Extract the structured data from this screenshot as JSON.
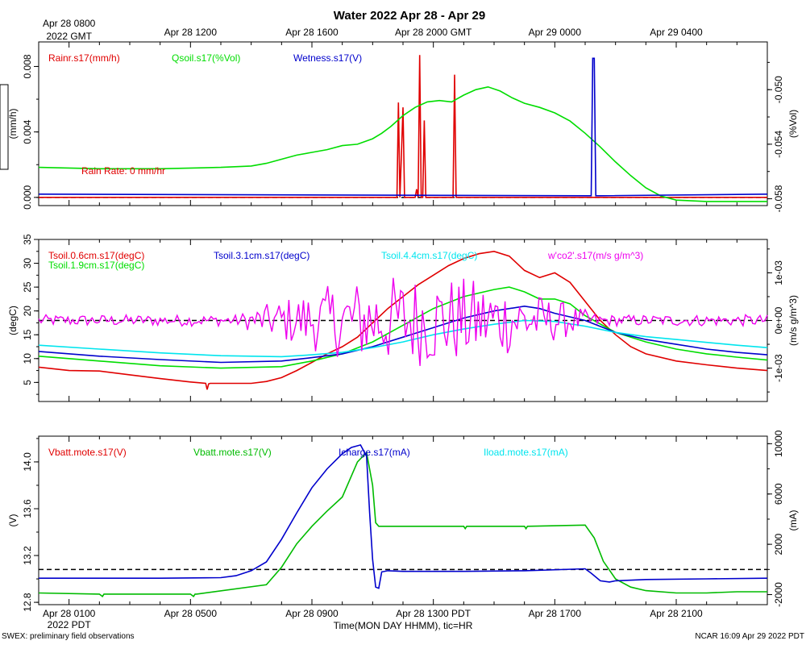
{
  "title": "Water 2022 Apr 28 - Apr 29",
  "footer_left": "SWEX: preliminary field observations",
  "footer_right": "NCAR 16:09 Apr 29 2022 PDT",
  "top_time_axis": {
    "ticks": [
      {
        "t": 1,
        "label": "Apr 28 0800",
        "label2": "2022 GMT"
      },
      {
        "t": 5,
        "label": "Apr 28 1200"
      },
      {
        "t": 9,
        "label": "Apr 28 1600"
      },
      {
        "t": 13,
        "label": "Apr 28 2000 GMT"
      },
      {
        "t": 17,
        "label": "Apr 29 0000"
      },
      {
        "t": 21,
        "label": "Apr 29 0400"
      }
    ]
  },
  "bottom_time_axis": {
    "ticks": [
      {
        "t": 1,
        "label": "Apr 28 0100",
        "label2": "2022 PDT"
      },
      {
        "t": 5,
        "label": "Apr 28 0500"
      },
      {
        "t": 9,
        "label": "Apr 28 0900"
      },
      {
        "t": 13,
        "label": "Apr 28 1300 PDT"
      },
      {
        "t": 17,
        "label": "Apr 28 1700"
      },
      {
        "t": 21,
        "label": "Apr 28 2100"
      }
    ],
    "xlabel": "Time(MON DAY HHMM), tic=HR"
  },
  "chart_data": [
    {
      "type": "line",
      "title": "Water 2022 Apr 28 - Apr 29",
      "xlim": [
        0,
        24
      ],
      "left_axis": {
        "label": "(mm/h)",
        "lim": [
          -0.0005,
          0.0095
        ],
        "ticks": [
          "0.000",
          "0.004",
          "0.008"
        ],
        "tick_values": [
          0,
          0.004,
          0.008
        ]
      },
      "right_axis": {
        "label": "(%Vol)",
        "lim": [
          -0.0585,
          -0.0465
        ],
        "ticks": [
          "-0.058",
          "-0.054",
          "-0.050"
        ],
        "tick_values": [
          -0.058,
          -0.054,
          -0.05
        ]
      },
      "annotation": {
        "text": "Rain Rate: 0 mm/hr",
        "color": "#e00000"
      },
      "series": [
        {
          "name": "Rainr.s17(mm/h)",
          "color": "#e00000",
          "axis": "left",
          "x": [
            0,
            11.8,
            11.85,
            11.9,
            11.95,
            12.0,
            12.05,
            12.1,
            12.15,
            12.4,
            12.45,
            12.5,
            12.55,
            12.6,
            12.65,
            12.7,
            12.75,
            12.8,
            12.85,
            12.9,
            12.95,
            13.0,
            13.05,
            13.6,
            13.65,
            13.7,
            13.75,
            13.8,
            24
          ],
          "y": [
            0,
            0,
            0.0058,
            0,
            0.0027,
            0.0055,
            0,
            0,
            0,
            0,
            0.0005,
            0,
            0.0087,
            0,
            0,
            0.0047,
            0,
            0,
            0,
            0,
            0,
            0,
            0,
            0,
            0,
            0.0075,
            0,
            0,
            0
          ]
        },
        {
          "name": "Qsoil.s17(%Vol)",
          "color": "#00dd00",
          "axis": "right",
          "x": [
            0,
            2,
            4,
            6,
            7,
            7.5,
            8,
            8.5,
            9,
            9.5,
            10,
            10.5,
            11,
            11.3,
            11.6,
            12,
            12.4,
            12.8,
            13.2,
            13.6,
            14,
            14.4,
            14.8,
            15.2,
            15.6,
            16,
            16.5,
            17,
            17.5,
            18,
            18.5,
            19,
            19.5,
            20,
            20.5,
            21,
            22,
            23,
            24
          ],
          "y": [
            -0.0557,
            -0.0558,
            -0.0558,
            -0.0557,
            -0.0556,
            -0.0554,
            -0.0551,
            -0.0548,
            -0.0546,
            -0.0544,
            -0.0541,
            -0.054,
            -0.0536,
            -0.0532,
            -0.0527,
            -0.0519,
            -0.0513,
            -0.0509,
            -0.0508,
            -0.0509,
            -0.0504,
            -0.05,
            -0.0498,
            -0.0501,
            -0.0506,
            -0.051,
            -0.0513,
            -0.0517,
            -0.0523,
            -0.0532,
            -0.0542,
            -0.0553,
            -0.0563,
            -0.0572,
            -0.0578,
            -0.0581,
            -0.0582,
            -0.0582,
            -0.0582
          ]
        },
        {
          "name": "Wetness.s17(V)",
          "color": "#0000cc",
          "axis": "left",
          "x": [
            0,
            18.1,
            18.2,
            18.25,
            18.3,
            18.35,
            18.5,
            24
          ],
          "y": [
            0.0002,
            0.0001,
            0.0001,
            0.0085,
            0.0085,
            0.0001,
            0.0001,
            0.0002
          ]
        }
      ],
      "reference_line": {
        "axis": "left",
        "value": 0,
        "style": "dashed"
      }
    },
    {
      "type": "line",
      "xlim": [
        0,
        24
      ],
      "left_axis": {
        "label": "(degC)",
        "lim": [
          1,
          35
        ],
        "ticks": [
          "5",
          "10",
          "15",
          "20",
          "25",
          "30",
          "35"
        ],
        "tick_values": [
          5,
          10,
          15,
          20,
          25,
          30,
          35
        ]
      },
      "right_axis": {
        "label": "(m/s g/m^3)",
        "lim": [
          -0.0017,
          0.0017
        ],
        "ticks": [
          "-1e-03",
          "0e+00",
          "1e-03"
        ],
        "tick_values": [
          -0.001,
          0,
          0.001
        ]
      },
      "series": [
        {
          "name": "Tsoil.0.6cm.s17(degC)",
          "color": "#e00000",
          "axis": "left",
          "x": [
            0,
            1,
            2,
            3,
            4,
            5,
            5.5,
            5.55,
            5.6,
            5.65,
            6,
            7,
            7.5,
            8,
            8.5,
            9,
            9.5,
            10,
            10.5,
            11,
            11.5,
            12,
            12.5,
            13,
            13.5,
            14,
            14.5,
            15,
            15.5,
            16,
            16.5,
            17,
            17.5,
            18,
            18.5,
            19,
            19.5,
            20,
            21,
            22,
            23,
            24
          ],
          "y": [
            8.2,
            7.5,
            7.4,
            6.6,
            5.8,
            5.1,
            4.8,
            3.5,
            4.7,
            4.8,
            4.8,
            4.8,
            5.2,
            6.0,
            7.5,
            9.2,
            11.0,
            12.5,
            14.5,
            17.5,
            20.5,
            23.0,
            25.5,
            27.5,
            29.5,
            31.0,
            32.0,
            32.5,
            31.5,
            28.5,
            27.0,
            28.0,
            26.0,
            22.0,
            18.0,
            15.0,
            12.5,
            11.0,
            9.5,
            8.7,
            8.0,
            7.5
          ]
        },
        {
          "name": "Tsoil.1.9cm.s17(degC)",
          "color": "#00dd00",
          "axis": "left",
          "x": [
            0,
            2,
            4,
            6,
            8,
            9,
            10,
            11,
            12,
            13,
            14,
            15,
            15.5,
            16,
            16.5,
            17,
            17.5,
            18,
            19,
            20,
            21,
            22,
            23,
            24
          ],
          "y": [
            10.5,
            9.5,
            8.5,
            8.0,
            8.3,
            9.5,
            11.0,
            13.5,
            17.0,
            20.5,
            23.0,
            24.5,
            25.0,
            24.0,
            22.5,
            22.5,
            21.5,
            19.0,
            15.5,
            13.5,
            12.0,
            11.0,
            10.3,
            9.7
          ]
        },
        {
          "name": "Tsoil.3.1cm.s17(degC)",
          "color": "#0000cc",
          "axis": "left",
          "x": [
            0,
            2,
            4,
            6,
            8,
            9,
            10,
            11,
            12,
            13,
            14,
            15,
            16,
            16.5,
            17,
            18,
            19,
            20,
            21,
            22,
            23,
            24
          ],
          "y": [
            11.5,
            10.5,
            9.8,
            9.2,
            9.5,
            10.2,
            11.0,
            12.5,
            14.5,
            16.5,
            18.5,
            20.0,
            21.0,
            20.5,
            19.5,
            18.0,
            15.5,
            14.0,
            13.0,
            12.0,
            11.3,
            10.8
          ]
        },
        {
          "name": "Tsoil.4.4cm.s17(degC)",
          "color": "#00e5ee",
          "axis": "left",
          "x": [
            0,
            2,
            4,
            6,
            8,
            9,
            10,
            11,
            12,
            13,
            14,
            15,
            16,
            17,
            18,
            19,
            20,
            21,
            22,
            23,
            24
          ],
          "y": [
            12.8,
            12.0,
            11.2,
            10.6,
            10.4,
            10.8,
            11.3,
            12.3,
            13.5,
            15.0,
            16.2,
            17.2,
            18.0,
            17.8,
            16.8,
            15.5,
            14.6,
            14.0,
            13.4,
            12.8,
            12.3
          ]
        },
        {
          "name": "w'co2'.s17(m/s g/m^3)",
          "color": "#ee00ee",
          "axis": "right",
          "noise": true,
          "note": "fluctuates around 0e+00; amplitude grows from ~1e-04 at night to ~1e-03 near midday"
        }
      ],
      "reference_line": {
        "axis": "right",
        "value": 0,
        "style": "dashed"
      }
    },
    {
      "type": "line",
      "xlim": [
        0,
        24
      ],
      "left_axis": {
        "label": "(V)",
        "lim": [
          12.78,
          14.22
        ],
        "ticks": [
          "12.8",
          "13.2",
          "13.6",
          "14.0"
        ],
        "tick_values": [
          12.8,
          13.2,
          13.6,
          14.0
        ]
      },
      "right_axis": {
        "label": "(mA)",
        "lim": [
          -2800,
          10600
        ],
        "ticks": [
          "-2000",
          "2000",
          "6000",
          "10000"
        ],
        "tick_values": [
          -2000,
          2000,
          6000,
          10000
        ]
      },
      "series": [
        {
          "name": "Vbatt.mote.s17(V)",
          "color": "#e00000",
          "axis": "left",
          "note": "hidden behind Vbatt.mote green trace"
        },
        {
          "name": "Vbatt.mote.s17(V)",
          "color": "#00bb00",
          "axis": "left",
          "x": [
            0,
            2,
            2.1,
            2.15,
            2.2,
            5,
            5.1,
            5.15,
            5.2,
            7.5,
            8,
            8.5,
            9,
            9.5,
            10,
            10.5,
            10.8,
            11,
            11.1,
            11.2,
            11.3,
            14,
            14.05,
            14.1,
            16,
            16.05,
            16.1,
            18,
            18.3,
            18.6,
            19,
            19.5,
            20,
            21,
            22,
            23,
            24
          ],
          "y": [
            12.88,
            12.87,
            12.85,
            12.87,
            12.87,
            12.87,
            12.85,
            12.87,
            12.87,
            12.95,
            13.1,
            13.3,
            13.45,
            13.58,
            13.7,
            14.0,
            14.08,
            13.8,
            13.48,
            13.45,
            13.45,
            13.45,
            13.43,
            13.45,
            13.45,
            13.43,
            13.45,
            13.46,
            13.35,
            13.15,
            13.0,
            12.93,
            12.9,
            12.88,
            12.88,
            12.89,
            12.89
          ]
        },
        {
          "name": "Icharge.s17(mA)",
          "color": "#0000cc",
          "axis": "right",
          "x": [
            0,
            2,
            4,
            6,
            6.5,
            7,
            7.5,
            8,
            8.5,
            9,
            9.5,
            10,
            10.3,
            10.6,
            10.8,
            10.9,
            11,
            11.1,
            11.2,
            11.3,
            11.5,
            12,
            14,
            16,
            18,
            18.2,
            18.5,
            18.8,
            19,
            20,
            22,
            24
          ],
          "y": [
            -700,
            -700,
            -700,
            -650,
            -500,
            -100,
            600,
            2400,
            4500,
            6500,
            8000,
            9200,
            9700,
            9900,
            9000,
            4500,
            800,
            -1400,
            -1500,
            -200,
            -100,
            -150,
            -150,
            -100,
            50,
            -300,
            -900,
            -1000,
            -900,
            -800,
            -750,
            -700
          ]
        },
        {
          "name": "Iload.mote.s17(mA)",
          "color": "#00e5ee",
          "axis": "right",
          "note": "no visible trace"
        }
      ],
      "reference_line": {
        "axis": "right",
        "value": 0,
        "style": "dashed"
      }
    }
  ]
}
